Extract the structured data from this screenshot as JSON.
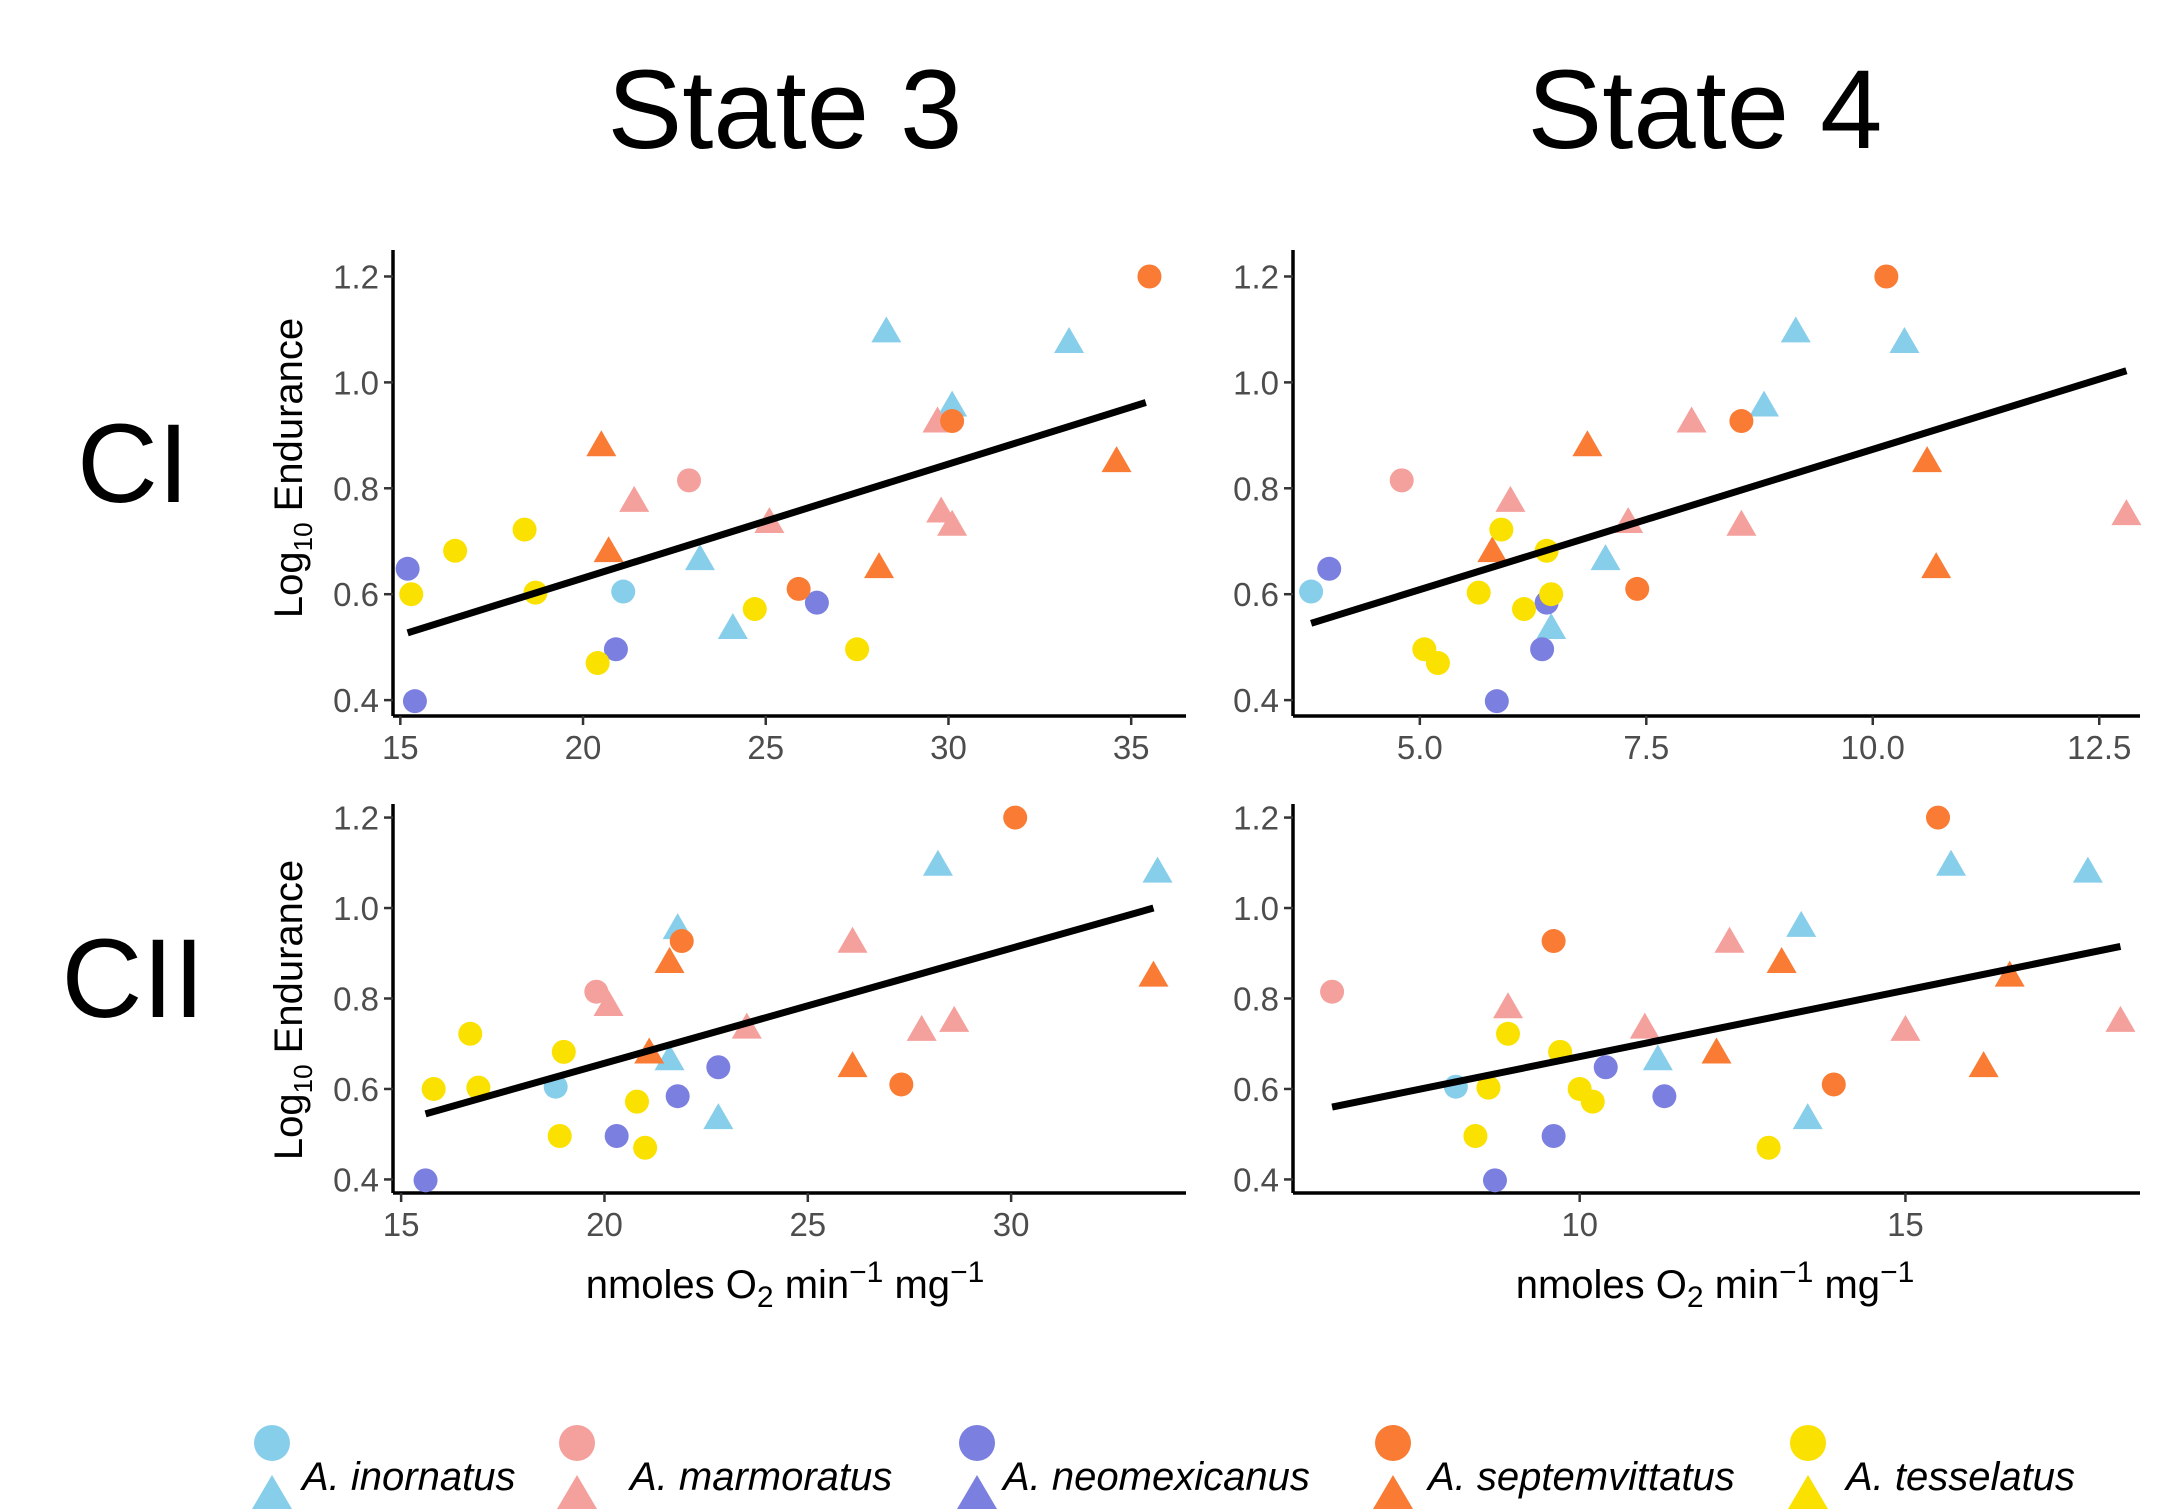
{
  "column_titles": [
    "State 3",
    "State 4"
  ],
  "row_titles": [
    "CI",
    "CII"
  ],
  "y_axis_label": {
    "main": "Log",
    "sub": "10",
    "rest": " Endurance"
  },
  "x_axis_label": {
    "a": "nmoles O",
    "b": "2",
    "c": " min",
    "d": "−1",
    "e": " mg",
    "f": "−1"
  },
  "colors": {
    "A. inornatus": "#87ceeb",
    "A. marmoratus": "#f4a09c",
    "A. neomexicanus": "#7b7fe0",
    "A. septemvittatus": "#f97b34",
    "A. tesselatus": "#fae100",
    "line": "#000000"
  },
  "legend": [
    {
      "label": "A. inornatus",
      "color": "#87ceeb"
    },
    {
      "label": "A. marmoratus",
      "color": "#f4a09c"
    },
    {
      "label": "A. neomexicanus",
      "color": "#7b7fe0"
    },
    {
      "label": "A. septemvittatus",
      "color": "#f97b34"
    },
    {
      "label": "A. tesselatus",
      "color": "#fae100"
    }
  ],
  "chart_data": [
    {
      "type": "scatter",
      "row": "CI",
      "column": "State 3",
      "xlim": [
        14.8,
        36.5
      ],
      "ylim": [
        0.37,
        1.25
      ],
      "xticks": [
        15,
        20,
        25,
        30,
        35
      ],
      "xtick_labels": [
        "15",
        "20",
        "25",
        "30",
        "35"
      ],
      "yticks": [
        0.4,
        0.6,
        0.8,
        1.0,
        1.2
      ],
      "ytick_labels": [
        "0.4",
        "0.6",
        "0.8",
        "1.0",
        "1.2"
      ],
      "trend": [
        [
          15.2,
          0.527
        ],
        [
          35.4,
          0.962
        ]
      ],
      "points": [
        {
          "species": "A. inornatus",
          "shape": "triangle",
          "x": 28.3,
          "y": 1.1
        },
        {
          "species": "A. inornatus",
          "shape": "triangle",
          "x": 33.3,
          "y": 1.08
        },
        {
          "species": "A. inornatus",
          "shape": "triangle",
          "x": 30.1,
          "y": 0.96
        },
        {
          "species": "A. inornatus",
          "shape": "triangle",
          "x": 23.2,
          "y": 0.67
        },
        {
          "species": "A. inornatus",
          "shape": "triangle",
          "x": 24.1,
          "y": 0.54
        },
        {
          "species": "A. inornatus",
          "shape": "circle",
          "x": 21.1,
          "y": 0.605
        },
        {
          "species": "A. marmoratus",
          "shape": "circle",
          "x": 22.9,
          "y": 0.815
        },
        {
          "species": "A. marmoratus",
          "shape": "triangle",
          "x": 21.4,
          "y": 0.78
        },
        {
          "species": "A. marmoratus",
          "shape": "triangle",
          "x": 29.7,
          "y": 0.93
        },
        {
          "species": "A. marmoratus",
          "shape": "triangle",
          "x": 29.8,
          "y": 0.76
        },
        {
          "species": "A. marmoratus",
          "shape": "triangle",
          "x": 30.1,
          "y": 0.735
        },
        {
          "species": "A. marmoratus",
          "shape": "triangle",
          "x": 25.1,
          "y": 0.74
        },
        {
          "species": "A. neomexicanus",
          "shape": "circle",
          "x": 15.2,
          "y": 0.648
        },
        {
          "species": "A. neomexicanus",
          "shape": "circle",
          "x": 15.4,
          "y": 0.398
        },
        {
          "species": "A. neomexicanus",
          "shape": "circle",
          "x": 20.9,
          "y": 0.496
        },
        {
          "species": "A. neomexicanus",
          "shape": "circle",
          "x": 26.4,
          "y": 0.584
        },
        {
          "species": "A. septemvittatus",
          "shape": "circle",
          "x": 35.5,
          "y": 1.2
        },
        {
          "species": "A. septemvittatus",
          "shape": "circle",
          "x": 30.1,
          "y": 0.927
        },
        {
          "species": "A. septemvittatus",
          "shape": "circle",
          "x": 25.9,
          "y": 0.61
        },
        {
          "species": "A. septemvittatus",
          "shape": "triangle",
          "x": 20.5,
          "y": 0.885
        },
        {
          "species": "A. septemvittatus",
          "shape": "triangle",
          "x": 20.7,
          "y": 0.685
        },
        {
          "species": "A. septemvittatus",
          "shape": "triangle",
          "x": 28.1,
          "y": 0.655
        },
        {
          "species": "A. septemvittatus",
          "shape": "triangle",
          "x": 34.6,
          "y": 0.855
        },
        {
          "species": "A. tesselatus",
          "shape": "circle",
          "x": 15.3,
          "y": 0.6
        },
        {
          "species": "A. tesselatus",
          "shape": "circle",
          "x": 16.5,
          "y": 0.682
        },
        {
          "species": "A. tesselatus",
          "shape": "circle",
          "x": 18.4,
          "y": 0.722
        },
        {
          "species": "A. tesselatus",
          "shape": "circle",
          "x": 18.7,
          "y": 0.603
        },
        {
          "species": "A. tesselatus",
          "shape": "circle",
          "x": 20.4,
          "y": 0.47
        },
        {
          "species": "A. tesselatus",
          "shape": "circle",
          "x": 24.7,
          "y": 0.572
        },
        {
          "species": "A. tesselatus",
          "shape": "circle",
          "x": 27.5,
          "y": 0.496
        }
      ]
    },
    {
      "type": "scatter",
      "row": "CI",
      "column": "State 4",
      "xlim": [
        3.6,
        12.95
      ],
      "ylim": [
        0.37,
        1.25
      ],
      "xticks": [
        5.0,
        7.5,
        10.0,
        12.5
      ],
      "xtick_labels": [
        "5.0",
        "7.5",
        "10.0",
        "12.5"
      ],
      "yticks": [
        0.4,
        0.6,
        0.8,
        1.0,
        1.2
      ],
      "ytick_labels": [
        "0.4",
        "0.6",
        "0.8",
        "1.0",
        "1.2"
      ],
      "trend": [
        [
          3.8,
          0.545
        ],
        [
          12.8,
          1.022
        ]
      ],
      "points": [
        {
          "species": "A. inornatus",
          "shape": "circle",
          "x": 3.8,
          "y": 0.605
        },
        {
          "species": "A. inornatus",
          "shape": "triangle",
          "x": 9.15,
          "y": 1.1
        },
        {
          "species": "A. inornatus",
          "shape": "triangle",
          "x": 10.35,
          "y": 1.08
        },
        {
          "species": "A. inornatus",
          "shape": "triangle",
          "x": 8.8,
          "y": 0.96
        },
        {
          "species": "A. inornatus",
          "shape": "triangle",
          "x": 7.05,
          "y": 0.67
        },
        {
          "species": "A. inornatus",
          "shape": "triangle",
          "x": 6.45,
          "y": 0.54
        },
        {
          "species": "A. marmoratus",
          "shape": "circle",
          "x": 4.8,
          "y": 0.815
        },
        {
          "species": "A. marmoratus",
          "shape": "triangle",
          "x": 6.0,
          "y": 0.78
        },
        {
          "species": "A. marmoratus",
          "shape": "triangle",
          "x": 8.0,
          "y": 0.93
        },
        {
          "species": "A. marmoratus",
          "shape": "triangle",
          "x": 7.3,
          "y": 0.74
        },
        {
          "species": "A. marmoratus",
          "shape": "triangle",
          "x": 8.55,
          "y": 0.735
        },
        {
          "species": "A. marmoratus",
          "shape": "triangle",
          "x": 12.8,
          "y": 0.755
        },
        {
          "species": "A. neomexicanus",
          "shape": "circle",
          "x": 4.0,
          "y": 0.648
        },
        {
          "species": "A. neomexicanus",
          "shape": "circle",
          "x": 5.85,
          "y": 0.398
        },
        {
          "species": "A. neomexicanus",
          "shape": "circle",
          "x": 6.35,
          "y": 0.496
        },
        {
          "species": "A. neomexicanus",
          "shape": "circle",
          "x": 6.4,
          "y": 0.584
        },
        {
          "species": "A. septemvittatus",
          "shape": "circle",
          "x": 10.15,
          "y": 1.2
        },
        {
          "species": "A. septemvittatus",
          "shape": "circle",
          "x": 8.55,
          "y": 0.927
        },
        {
          "species": "A. septemvittatus",
          "shape": "circle",
          "x": 7.4,
          "y": 0.61
        },
        {
          "species": "A. septemvittatus",
          "shape": "triangle",
          "x": 6.85,
          "y": 0.885
        },
        {
          "species": "A. septemvittatus",
          "shape": "triangle",
          "x": 5.8,
          "y": 0.685
        },
        {
          "species": "A. septemvittatus",
          "shape": "triangle",
          "x": 10.6,
          "y": 0.855
        },
        {
          "species": "A. septemvittatus",
          "shape": "triangle",
          "x": 10.7,
          "y": 0.655
        },
        {
          "species": "A. tesselatus",
          "shape": "circle",
          "x": 5.05,
          "y": 0.496
        },
        {
          "species": "A. tesselatus",
          "shape": "circle",
          "x": 5.2,
          "y": 0.47
        },
        {
          "species": "A. tesselatus",
          "shape": "circle",
          "x": 5.65,
          "y": 0.603
        },
        {
          "species": "A. tesselatus",
          "shape": "circle",
          "x": 5.9,
          "y": 0.722
        },
        {
          "species": "A. tesselatus",
          "shape": "circle",
          "x": 6.15,
          "y": 0.572
        },
        {
          "species": "A. tesselatus",
          "shape": "circle",
          "x": 6.4,
          "y": 0.682
        },
        {
          "species": "A. tesselatus",
          "shape": "circle",
          "x": 6.45,
          "y": 0.6
        }
      ]
    },
    {
      "type": "scatter",
      "row": "CII",
      "column": "State 3",
      "xlim": [
        14.8,
        34.3
      ],
      "ylim": [
        0.37,
        1.23
      ],
      "xticks": [
        15,
        20,
        25,
        30
      ],
      "xtick_labels": [
        "15",
        "20",
        "25",
        "30"
      ],
      "yticks": [
        0.4,
        0.6,
        0.8,
        1.0,
        1.2
      ],
      "ytick_labels": [
        "0.4",
        "0.6",
        "0.8",
        "1.0",
        "1.2"
      ],
      "trend": [
        [
          15.6,
          0.545
        ],
        [
          33.5,
          1.0
        ]
      ],
      "points": [
        {
          "species": "A. inornatus",
          "shape": "circle",
          "x": 18.8,
          "y": 0.605
        },
        {
          "species": "A. inornatus",
          "shape": "triangle",
          "x": 28.2,
          "y": 1.1
        },
        {
          "species": "A. inornatus",
          "shape": "triangle",
          "x": 33.6,
          "y": 1.085
        },
        {
          "species": "A. inornatus",
          "shape": "triangle",
          "x": 21.8,
          "y": 0.96
        },
        {
          "species": "A. inornatus",
          "shape": "triangle",
          "x": 21.6,
          "y": 0.67
        },
        {
          "species": "A. inornatus",
          "shape": "triangle",
          "x": 22.8,
          "y": 0.54
        },
        {
          "species": "A. marmoratus",
          "shape": "circle",
          "x": 19.8,
          "y": 0.815
        },
        {
          "species": "A. marmoratus",
          "shape": "triangle",
          "x": 20.1,
          "y": 0.79
        },
        {
          "species": "A. marmoratus",
          "shape": "triangle",
          "x": 26.1,
          "y": 0.93
        },
        {
          "species": "A. marmoratus",
          "shape": "triangle",
          "x": 23.5,
          "y": 0.74
        },
        {
          "species": "A. marmoratus",
          "shape": "triangle",
          "x": 27.8,
          "y": 0.735
        },
        {
          "species": "A. marmoratus",
          "shape": "triangle",
          "x": 28.6,
          "y": 0.755
        },
        {
          "species": "A. neomexicanus",
          "shape": "circle",
          "x": 15.6,
          "y": 0.398
        },
        {
          "species": "A. neomexicanus",
          "shape": "circle",
          "x": 20.3,
          "y": 0.496
        },
        {
          "species": "A. neomexicanus",
          "shape": "circle",
          "x": 21.8,
          "y": 0.584
        },
        {
          "species": "A. neomexicanus",
          "shape": "circle",
          "x": 22.8,
          "y": 0.648
        },
        {
          "species": "A. septemvittatus",
          "shape": "circle",
          "x": 30.1,
          "y": 1.2
        },
        {
          "species": "A. septemvittatus",
          "shape": "circle",
          "x": 21.9,
          "y": 0.927
        },
        {
          "species": "A. septemvittatus",
          "shape": "circle",
          "x": 27.3,
          "y": 0.61
        },
        {
          "species": "A. septemvittatus",
          "shape": "triangle",
          "x": 21.6,
          "y": 0.885
        },
        {
          "species": "A. septemvittatus",
          "shape": "triangle",
          "x": 21.1,
          "y": 0.685
        },
        {
          "species": "A. septemvittatus",
          "shape": "triangle",
          "x": 26.1,
          "y": 0.655
        },
        {
          "species": "A. septemvittatus",
          "shape": "triangle",
          "x": 33.5,
          "y": 0.855
        },
        {
          "species": "A. tesselatus",
          "shape": "circle",
          "x": 15.8,
          "y": 0.6
        },
        {
          "species": "A. tesselatus",
          "shape": "circle",
          "x": 16.7,
          "y": 0.722
        },
        {
          "species": "A. tesselatus",
          "shape": "circle",
          "x": 16.9,
          "y": 0.603
        },
        {
          "species": "A. tesselatus",
          "shape": "circle",
          "x": 18.9,
          "y": 0.496
        },
        {
          "species": "A. tesselatus",
          "shape": "circle",
          "x": 19.0,
          "y": 0.682
        },
        {
          "species": "A. tesselatus",
          "shape": "circle",
          "x": 20.8,
          "y": 0.572
        },
        {
          "species": "A. tesselatus",
          "shape": "circle",
          "x": 21.0,
          "y": 0.47
        }
      ]
    },
    {
      "type": "scatter",
      "row": "CII",
      "column": "State 4",
      "xlim": [
        5.6,
        18.6
      ],
      "ylim": [
        0.37,
        1.23
      ],
      "xticks": [
        10,
        15
      ],
      "xtick_labels": [
        "10",
        "15"
      ],
      "yticks": [
        0.4,
        0.6,
        0.8,
        1.0,
        1.2
      ],
      "ytick_labels": [
        "0.4",
        "0.6",
        "0.8",
        "1.0",
        "1.2"
      ],
      "trend": [
        [
          6.2,
          0.56
        ],
        [
          18.3,
          0.915
        ]
      ],
      "points": [
        {
          "species": "A. inornatus",
          "shape": "circle",
          "x": 8.1,
          "y": 0.605
        },
        {
          "species": "A. inornatus",
          "shape": "triangle",
          "x": 15.7,
          "y": 1.1
        },
        {
          "species": "A. inornatus",
          "shape": "triangle",
          "x": 17.8,
          "y": 1.085
        },
        {
          "species": "A. inornatus",
          "shape": "triangle",
          "x": 13.4,
          "y": 0.965
        },
        {
          "species": "A. inornatus",
          "shape": "triangle",
          "x": 11.2,
          "y": 0.67
        },
        {
          "species": "A. inornatus",
          "shape": "triangle",
          "x": 13.5,
          "y": 0.54
        },
        {
          "species": "A. marmoratus",
          "shape": "circle",
          "x": 6.2,
          "y": 0.815
        },
        {
          "species": "A. marmoratus",
          "shape": "triangle",
          "x": 8.9,
          "y": 0.785
        },
        {
          "species": "A. marmoratus",
          "shape": "triangle",
          "x": 12.3,
          "y": 0.93
        },
        {
          "species": "A. marmoratus",
          "shape": "triangle",
          "x": 11.0,
          "y": 0.74
        },
        {
          "species": "A. marmoratus",
          "shape": "triangle",
          "x": 15.0,
          "y": 0.735
        },
        {
          "species": "A. marmoratus",
          "shape": "triangle",
          "x": 18.3,
          "y": 0.755
        },
        {
          "species": "A. neomexicanus",
          "shape": "circle",
          "x": 8.7,
          "y": 0.398
        },
        {
          "species": "A. neomexicanus",
          "shape": "circle",
          "x": 9.6,
          "y": 0.496
        },
        {
          "species": "A. neomexicanus",
          "shape": "circle",
          "x": 10.4,
          "y": 0.648
        },
        {
          "species": "A. neomexicanus",
          "shape": "circle",
          "x": 11.3,
          "y": 0.584
        },
        {
          "species": "A. septemvittatus",
          "shape": "circle",
          "x": 15.5,
          "y": 1.2
        },
        {
          "species": "A. septemvittatus",
          "shape": "circle",
          "x": 9.6,
          "y": 0.927
        },
        {
          "species": "A. septemvittatus",
          "shape": "circle",
          "x": 13.9,
          "y": 0.61
        },
        {
          "species": "A. septemvittatus",
          "shape": "triangle",
          "x": 13.1,
          "y": 0.885
        },
        {
          "species": "A. septemvittatus",
          "shape": "triangle",
          "x": 12.1,
          "y": 0.685
        },
        {
          "species": "A. septemvittatus",
          "shape": "triangle",
          "x": 16.6,
          "y": 0.855
        },
        {
          "species": "A. septemvittatus",
          "shape": "triangle",
          "x": 16.2,
          "y": 0.655
        },
        {
          "species": "A. tesselatus",
          "shape": "circle",
          "x": 8.4,
          "y": 0.496
        },
        {
          "species": "A. tesselatus",
          "shape": "circle",
          "x": 8.6,
          "y": 0.603
        },
        {
          "species": "A. tesselatus",
          "shape": "circle",
          "x": 8.9,
          "y": 0.722
        },
        {
          "species": "A. tesselatus",
          "shape": "circle",
          "x": 9.7,
          "y": 0.682
        },
        {
          "species": "A. tesselatus",
          "shape": "circle",
          "x": 10.0,
          "y": 0.6
        },
        {
          "species": "A. tesselatus",
          "shape": "circle",
          "x": 10.2,
          "y": 0.572
        },
        {
          "species": "A. tesselatus",
          "shape": "circle",
          "x": 12.9,
          "y": 0.47
        }
      ]
    }
  ]
}
